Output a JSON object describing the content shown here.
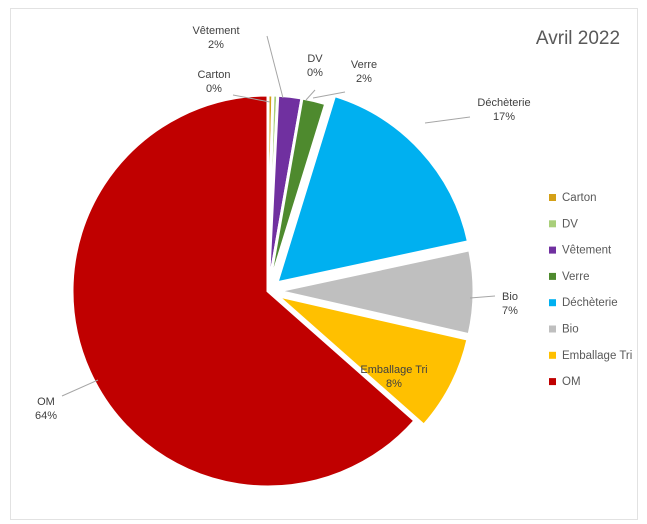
{
  "chart_data": {
    "type": "pie",
    "title": "Avril 2022",
    "legend_position": "right",
    "slices": [
      {
        "name": "Carton",
        "value": 0.4,
        "label_pct": "0%",
        "color": "#d4a017"
      },
      {
        "name": "DV",
        "value": 0.4,
        "label_pct": "0%",
        "color": "#a9cf7a"
      },
      {
        "name": "Vêtement",
        "value": 2,
        "label_pct": "2%",
        "color": "#7030a0"
      },
      {
        "name": "Verre",
        "value": 2,
        "label_pct": "2%",
        "color": "#4e8a2e"
      },
      {
        "name": "Déchèterie",
        "value": 17,
        "label_pct": "17%",
        "color": "#00b0f0"
      },
      {
        "name": "Bio",
        "value": 7,
        "label_pct": "7%",
        "color": "#bfbfbf"
      },
      {
        "name": "Emballage Tri",
        "value": 8,
        "label_pct": "8%",
        "color": "#ffc000"
      },
      {
        "name": "OM",
        "value": 64,
        "label_pct": "64%",
        "color": "#c00000"
      }
    ]
  }
}
